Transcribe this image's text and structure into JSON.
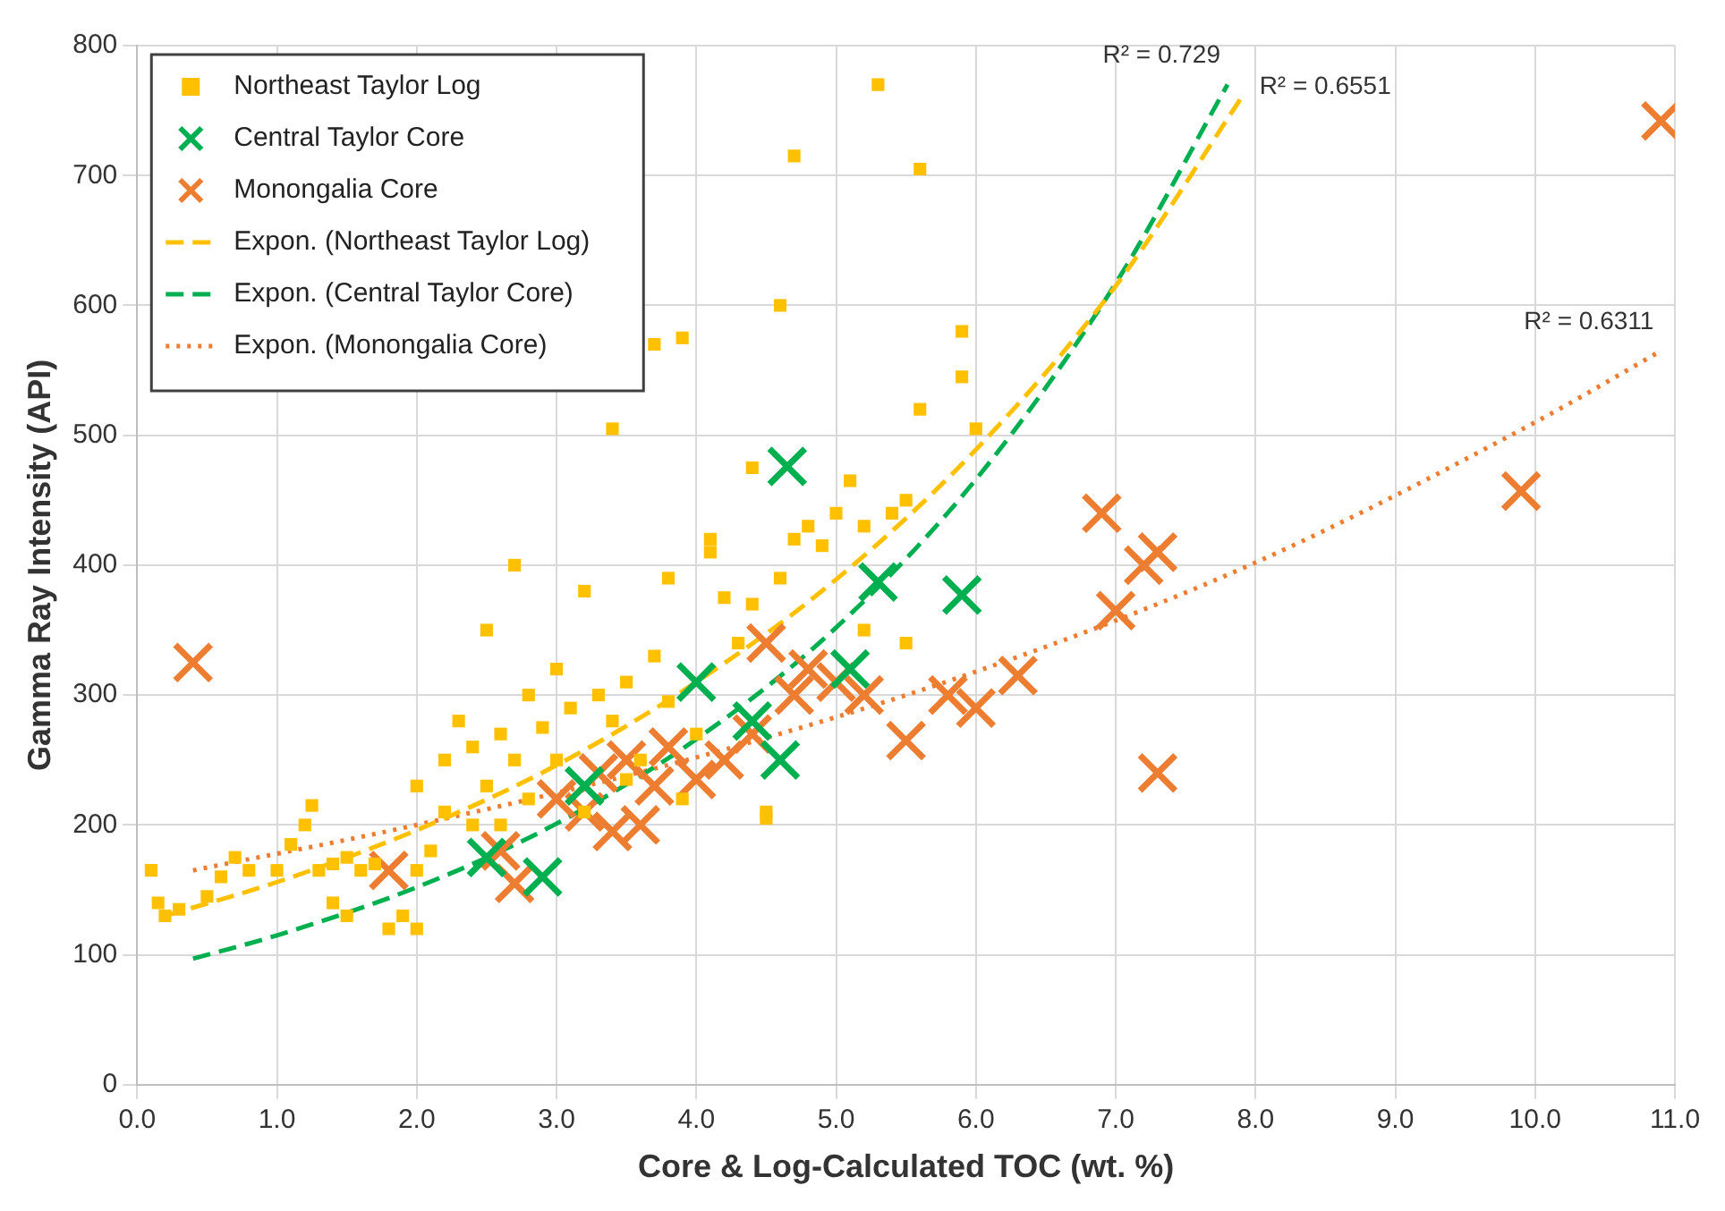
{
  "chart_data": {
    "type": "scatter",
    "xlabel": "Core & Log-Calculated TOC (wt. %)",
    "ylabel": "Gamma Ray Intensity (API)",
    "xlim": [
      0,
      11
    ],
    "xticks": [
      {
        "value": 0,
        "label": "0.0"
      },
      {
        "value": 1,
        "label": "1.0"
      },
      {
        "value": 2,
        "label": "2.0"
      },
      {
        "value": 3,
        "label": "3.0"
      },
      {
        "value": 4,
        "label": "4.0"
      },
      {
        "value": 5,
        "label": "5.0"
      },
      {
        "value": 6,
        "label": "6.0"
      },
      {
        "value": 7,
        "label": "7.0"
      },
      {
        "value": 8,
        "label": "8.0"
      },
      {
        "value": 9,
        "label": "9.0"
      },
      {
        "value": 10,
        "label": "10.0"
      },
      {
        "value": 11,
        "label": "11.0"
      }
    ],
    "ylim": [
      0,
      800
    ],
    "yticks": [
      0,
      100,
      200,
      300,
      400,
      500,
      600,
      700,
      800
    ],
    "grid": true,
    "legend": "top left",
    "series": [
      {
        "name": "Northeast Taylor Log",
        "marker": "square",
        "color": "#ffc000",
        "x": [
          0.1,
          0.15,
          0.2,
          0.3,
          0.5,
          0.6,
          0.7,
          0.8,
          1.0,
          1.1,
          1.2,
          1.25,
          1.3,
          1.4,
          1.4,
          1.5,
          1.5,
          1.6,
          1.7,
          1.8,
          1.9,
          2.0,
          2.0,
          2.0,
          2.1,
          2.2,
          2.2,
          2.3,
          2.4,
          2.4,
          2.5,
          2.5,
          2.6,
          2.6,
          2.7,
          2.7,
          2.8,
          2.8,
          2.9,
          3.0,
          3.0,
          3.1,
          3.2,
          3.2,
          3.3,
          3.4,
          3.5,
          3.5,
          3.6,
          3.7,
          3.7,
          3.8,
          3.8,
          3.9,
          3.9,
          3.4,
          4.0,
          4.1,
          4.1,
          4.2,
          4.3,
          4.4,
          4.4,
          4.5,
          4.5,
          4.6,
          4.6,
          4.7,
          4.7,
          4.8,
          4.9,
          5.0,
          5.1,
          5.2,
          5.2,
          5.3,
          5.4,
          5.5,
          5.5,
          5.6,
          5.6,
          5.9,
          5.9,
          6.0
        ],
        "values": [
          165,
          140,
          130,
          135,
          145,
          160,
          175,
          165,
          165,
          185,
          200,
          215,
          165,
          140,
          170,
          175,
          130,
          165,
          170,
          120,
          130,
          120,
          165,
          230,
          180,
          210,
          250,
          280,
          260,
          200,
          230,
          350,
          270,
          200,
          400,
          250,
          300,
          220,
          275,
          320,
          250,
          290,
          380,
          210,
          300,
          280,
          310,
          235,
          250,
          570,
          330,
          390,
          295,
          575,
          220,
          505,
          270,
          420,
          410,
          375,
          340,
          475,
          370,
          210,
          205,
          600,
          390,
          715,
          420,
          430,
          415,
          440,
          465,
          430,
          350,
          770,
          440,
          450,
          340,
          705,
          520,
          580,
          545,
          505
        ]
      },
      {
        "name": "Central Taylor Core",
        "marker": "cross",
        "color": "#00b050",
        "x": [
          2.5,
          2.9,
          3.2,
          4.0,
          4.4,
          4.6,
          4.65,
          5.1,
          5.3,
          5.9
        ],
        "values": [
          175,
          160,
          230,
          310,
          280,
          250,
          476,
          320,
          387,
          377
        ]
      },
      {
        "name": "Monongalia Core",
        "marker": "cross",
        "color": "#ed7d31",
        "x": [
          0.4,
          1.8,
          2.6,
          2.7,
          3.0,
          3.2,
          3.3,
          3.4,
          3.5,
          3.6,
          3.7,
          3.8,
          4.0,
          4.2,
          4.4,
          4.5,
          4.7,
          4.8,
          5.0,
          5.2,
          5.5,
          5.8,
          6.0,
          6.3,
          6.9,
          7.0,
          7.2,
          7.3,
          7.3,
          9.9,
          10.9
        ],
        "values": [
          325,
          165,
          180,
          155,
          220,
          210,
          240,
          195,
          250,
          200,
          230,
          260,
          235,
          250,
          270,
          340,
          300,
          320,
          310,
          300,
          265,
          300,
          290,
          315,
          440,
          365,
          400,
          410,
          240,
          457,
          742
        ]
      },
      {
        "name": "Expon. (Northeast Taylor Log)",
        "type": "line",
        "line_style": "dashed",
        "marker": "none",
        "color": "#ffc000",
        "x": [
          0.2,
          1,
          2,
          3,
          4,
          5,
          6,
          7,
          7.9
        ],
        "values": [
          130,
          156,
          196,
          246,
          310,
          389,
          489,
          615,
          760
        ]
      },
      {
        "name": "Expon. (Central Taylor Core)",
        "type": "line",
        "line_style": "dashed",
        "marker": "none",
        "color": "#00b050",
        "x": [
          0.4,
          1,
          2,
          3,
          4,
          5,
          6,
          7,
          7.8
        ],
        "values": [
          97,
          115,
          152,
          201,
          266,
          352,
          466,
          617,
          770
        ]
      },
      {
        "name": "Expon. (Monongalia Core)",
        "type": "line",
        "line_style": "dotted",
        "marker": "none",
        "color": "#ed7d31",
        "x": [
          0.4,
          2,
          4,
          6,
          8,
          10,
          10.9
        ],
        "values": [
          165,
          200,
          252,
          318,
          402,
          510,
          565
        ]
      }
    ],
    "annotations": [
      "R² = 0.6551",
      "R² = 0.729",
      "R² = 0.6311"
    ]
  }
}
